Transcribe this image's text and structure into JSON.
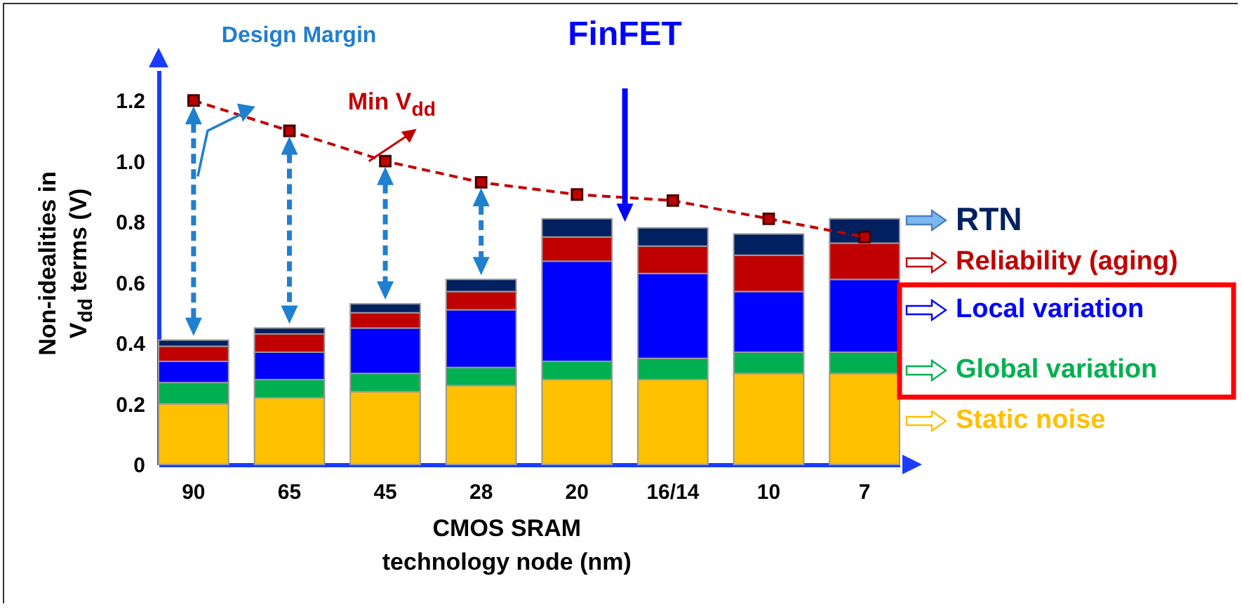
{
  "chart_data": {
    "type": "bar",
    "stacked": true,
    "xlabel": "CMOS SRAM technology node (nm)",
    "ylabel": "Non-idealities in V$_{dd}$ terms (V)",
    "categories": [
      "90",
      "65",
      "45",
      "28",
      "20",
      "16/14",
      "10",
      "7"
    ],
    "ylim": [
      0,
      1.3
    ],
    "yticks": [
      0,
      0.2,
      0.4,
      0.6,
      0.8,
      {
        "value": 1,
        "label": "1.0"
      },
      1.2
    ],
    "series": [
      {
        "name": "Static noise",
        "color": "#ffc000",
        "values": [
          0.2,
          0.22,
          0.24,
          0.26,
          0.28,
          0.28,
          0.3,
          0.3
        ]
      },
      {
        "name": "Global variation",
        "color": "#00b050",
        "values": [
          0.07,
          0.06,
          0.06,
          0.06,
          0.06,
          0.07,
          0.07,
          0.07
        ]
      },
      {
        "name": "Local variation",
        "color": "#0000ff",
        "values": [
          0.07,
          0.09,
          0.15,
          0.19,
          0.33,
          0.28,
          0.2,
          0.24
        ]
      },
      {
        "name": "Reliability (aging)",
        "color": "#c00000",
        "values": [
          0.05,
          0.06,
          0.05,
          0.06,
          0.08,
          0.09,
          0.12,
          0.12
        ]
      },
      {
        "name": "RTN",
        "color": "#002060",
        "values": [
          0.02,
          0.02,
          0.03,
          0.04,
          0.06,
          0.06,
          0.07,
          0.08
        ]
      },
      {
        "name": "Min V$_{dd}$",
        "type": "line",
        "color": "#c00000",
        "values": [
          1.2,
          1.1,
          1.0,
          0.93,
          0.89,
          0.87,
          0.81,
          0.75
        ]
      }
    ],
    "marker": "square",
    "line_style": "dashed",
    "legend": "right",
    "grid": false,
    "annotations": [
      "Design Margin",
      "FinFET"
    ]
  }
}
